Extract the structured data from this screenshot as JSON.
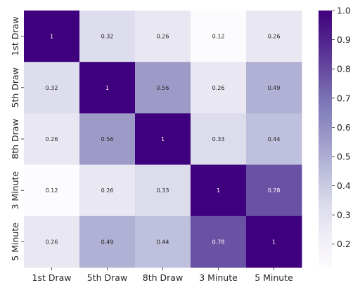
{
  "chart_data": {
    "type": "heatmap",
    "title": "",
    "xlabel": "",
    "ylabel": "",
    "x_categories": [
      "1st Draw",
      "5th Draw",
      "8th Draw",
      "3 Minute",
      "5 Minute"
    ],
    "y_categories": [
      "1st Draw",
      "5th Draw",
      "8th Draw",
      "3 Minute",
      "5 Minute"
    ],
    "values": [
      [
        1,
        0.32,
        0.26,
        0.12,
        0.26
      ],
      [
        0.32,
        1,
        0.56,
        0.26,
        0.49
      ],
      [
        0.26,
        0.56,
        1,
        0.33,
        0.44
      ],
      [
        0.12,
        0.26,
        0.33,
        1,
        0.78
      ],
      [
        0.26,
        0.49,
        0.44,
        0.78,
        1
      ]
    ],
    "value_labels": [
      [
        "1",
        "0.32",
        "0.26",
        "0.12",
        "0.26"
      ],
      [
        "0.32",
        "1",
        "0.56",
        "0.26",
        "0.49"
      ],
      [
        "0.26",
        "0.56",
        "1",
        "0.33",
        "0.44"
      ],
      [
        "0.12",
        "0.26",
        "0.33",
        "1",
        "0.78"
      ],
      [
        "0.26",
        "0.49",
        "0.44",
        "0.78",
        "1"
      ]
    ],
    "colormap": "Purples",
    "color_range": [
      0.12,
      1.0
    ],
    "colorbar": {
      "ticks": [
        0.2,
        0.3,
        0.4,
        0.5,
        0.6,
        0.7,
        0.8,
        0.9,
        1.0
      ],
      "tick_labels": [
        "0.2",
        "0.3",
        "0.4",
        "0.5",
        "0.6",
        "0.7",
        "0.8",
        "0.9",
        "1.0"
      ],
      "placement": "right"
    }
  }
}
